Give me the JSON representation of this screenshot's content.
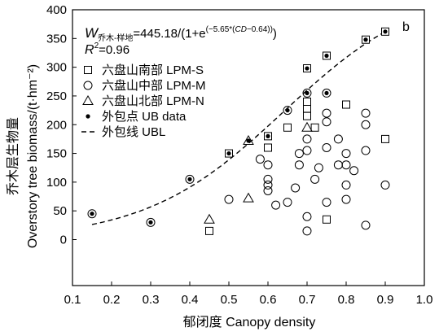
{
  "chart_data": {
    "type": "scatter",
    "panel_label": "b",
    "xlabel": "郁闭度 Canopy density",
    "ylabel_cn": "乔木层生物量",
    "ylabel_en": "Overstory tree biomass/(t·hm⁻²)",
    "xlim": [
      0.1,
      1.0
    ],
    "ylim": [
      -80,
      400
    ],
    "xticks": [
      0.1,
      0.2,
      0.3,
      0.4,
      0.5,
      0.6,
      0.7,
      0.8,
      0.9,
      1.0
    ],
    "xtick_labels": [
      "0.1",
      "0.2",
      "0.3",
      "0.4",
      "0.5",
      "0.6",
      "0.7",
      "0.8",
      "0.9",
      "1.0"
    ],
    "yticks": [
      0,
      50,
      100,
      150,
      200,
      250,
      300,
      350,
      400
    ],
    "ytick_labels": [
      "0",
      "50",
      "100",
      "150",
      "200",
      "250",
      "300",
      "350",
      "400"
    ],
    "grid": false,
    "legend_position": "top-left",
    "equation": {
      "W": "W",
      "W_sub": "乔木-样地",
      "main": "=445.18/(1+e",
      "exp_part1": "(−5.65*(",
      "exp_cd": "CD",
      "exp_part2": "−0.64))",
      "close": ")",
      "r2_R": "R",
      "r2_sup": "2",
      "r2_value": "=0.96"
    },
    "model": {
      "a": 445.18,
      "b": -5.65,
      "c": 0.64
    },
    "series": [
      {
        "name": "六盘山南部 LPM-S",
        "marker": "square",
        "points": [
          [
            0.45,
            15
          ],
          [
            0.5,
            150
          ],
          [
            0.6,
            160
          ],
          [
            0.6,
            180
          ],
          [
            0.65,
            195
          ],
          [
            0.7,
            215
          ],
          [
            0.7,
            228
          ],
          [
            0.7,
            240
          ],
          [
            0.7,
            298
          ],
          [
            0.72,
            195
          ],
          [
            0.75,
            35
          ],
          [
            0.75,
            320
          ],
          [
            0.8,
            235
          ],
          [
            0.85,
            348
          ],
          [
            0.9,
            175
          ],
          [
            0.9,
            362
          ]
        ]
      },
      {
        "name": "六盘山中部 LPM-M",
        "marker": "circle",
        "points": [
          [
            0.15,
            45
          ],
          [
            0.3,
            30
          ],
          [
            0.4,
            105
          ],
          [
            0.5,
            70
          ],
          [
            0.6,
            85
          ],
          [
            0.6,
            95
          ],
          [
            0.6,
            105
          ],
          [
            0.6,
            130
          ],
          [
            0.58,
            140
          ],
          [
            0.62,
            60
          ],
          [
            0.65,
            65
          ],
          [
            0.65,
            225
          ],
          [
            0.67,
            90
          ],
          [
            0.68,
            130
          ],
          [
            0.68,
            150
          ],
          [
            0.7,
            15
          ],
          [
            0.7,
            40
          ],
          [
            0.7,
            155
          ],
          [
            0.7,
            175
          ],
          [
            0.7,
            255
          ],
          [
            0.72,
            105
          ],
          [
            0.73,
            125
          ],
          [
            0.75,
            65
          ],
          [
            0.75,
            160
          ],
          [
            0.75,
            205
          ],
          [
            0.75,
            220
          ],
          [
            0.75,
            255
          ],
          [
            0.78,
            130
          ],
          [
            0.78,
            175
          ],
          [
            0.8,
            70
          ],
          [
            0.8,
            95
          ],
          [
            0.8,
            130
          ],
          [
            0.8,
            150
          ],
          [
            0.82,
            120
          ],
          [
            0.85,
            25
          ],
          [
            0.85,
            155
          ],
          [
            0.85,
            200
          ],
          [
            0.85,
            220
          ],
          [
            0.9,
            95
          ]
        ]
      },
      {
        "name": "六盘山北部 LPM-N",
        "marker": "triangle",
        "points": [
          [
            0.45,
            35
          ],
          [
            0.55,
            72
          ],
          [
            0.55,
            172
          ],
          [
            0.7,
            195
          ]
        ]
      },
      {
        "name": "外包点 UB data",
        "marker": "dot",
        "points": [
          [
            0.15,
            45
          ],
          [
            0.3,
            30
          ],
          [
            0.4,
            105
          ],
          [
            0.5,
            150
          ],
          [
            0.55,
            172
          ],
          [
            0.6,
            180
          ],
          [
            0.65,
            225
          ],
          [
            0.7,
            255
          ],
          [
            0.7,
            298
          ],
          [
            0.75,
            255
          ],
          [
            0.75,
            320
          ],
          [
            0.85,
            348
          ],
          [
            0.9,
            362
          ]
        ]
      },
      {
        "name": "外包线 UBL",
        "marker": "dashed-line",
        "curve_x": [
          0.15,
          0.9
        ]
      }
    ]
  }
}
